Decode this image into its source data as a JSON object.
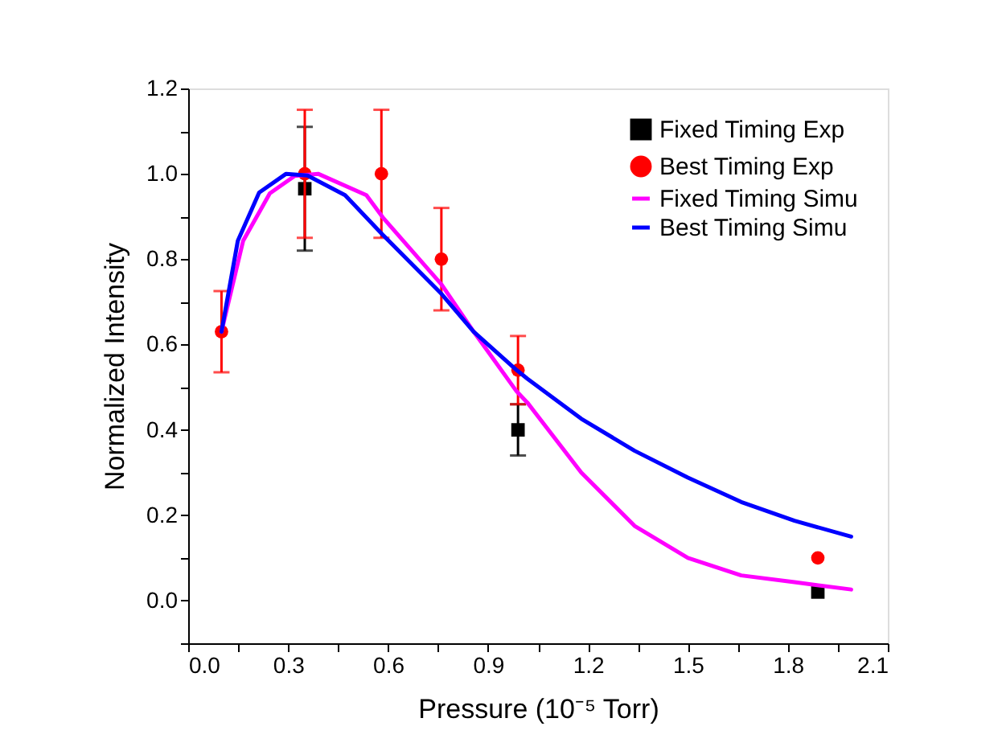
{
  "chart_data": {
    "type": "scatter",
    "xlabel": "Pressure (10⁻⁵ Torr)",
    "ylabel": "Normalized Intensity",
    "xlim": [
      0.0,
      2.1
    ],
    "ylim": [
      -0.1,
      1.2
    ],
    "xticks": [
      {
        "value": 0,
        "label": "0.0"
      },
      {
        "value": 0.15,
        "label": null
      },
      0.3,
      {
        "value": 0.45,
        "label": null
      },
      0.6,
      {
        "value": 0.75,
        "label": null
      },
      0.9,
      {
        "value": 1.05,
        "label": null
      },
      1.2,
      {
        "value": 1.35,
        "label": null
      },
      1.5,
      {
        "value": 1.65,
        "label": null
      },
      1.8,
      {
        "value": 1.95,
        "label": null
      },
      2.1
    ],
    "yticks": [
      {
        "value": -0.1,
        "label": null
      },
      {
        "value": 0,
        "label": "0.0"
      },
      {
        "value": 0.1,
        "label": null
      },
      0.2,
      {
        "value": 0.3,
        "label": null
      },
      0.4,
      {
        "value": 0.5,
        "label": null
      },
      0.6,
      {
        "value": 0.7,
        "label": null
      },
      0.8,
      {
        "value": 0.9,
        "label": null
      },
      {
        "value": 1,
        "label": "1.0"
      },
      {
        "value": 1.1,
        "label": null
      },
      1.2
    ],
    "grid": false,
    "legend": "top right",
    "series": [
      {
        "name": "Fixed Timing Exp",
        "marker": "square",
        "color": "#000000",
        "x": [
          0.35,
          0.99,
          1.89
        ],
        "values": [
          0.965,
          0.4,
          0.02
        ],
        "errors": [
          [
            0.82,
            1.11
          ],
          [
            0.34,
            0.46
          ],
          null
        ]
      },
      {
        "name": "Best Timing Exp",
        "marker": "circle",
        "color": "#ff0000",
        "x": [
          0.1,
          0.35,
          0.58,
          0.76,
          0.99,
          1.89
        ],
        "values": [
          0.63,
          1.0,
          1.0,
          0.8,
          0.54,
          0.1
        ],
        "errors": [
          [
            0.535,
            0.725
          ],
          [
            0.85,
            1.15
          ],
          [
            0.85,
            1.15
          ],
          [
            0.68,
            0.92
          ],
          [
            0.46,
            0.62
          ],
          null
        ]
      },
      {
        "name": "Fixed Timing Simu",
        "type": "line",
        "marker": "none",
        "line_style": "solid",
        "color": "#ff00ff",
        "x": [
          0.1,
          0.165,
          0.245,
          0.32,
          0.39,
          0.535,
          0.584,
          0.761,
          0.857,
          0.986,
          1.018,
          1.18,
          1.34,
          1.5,
          1.66,
          1.82,
          1.99
        ],
        "values": [
          0.63,
          0.843,
          0.954,
          0.995,
          1.0,
          0.95,
          0.898,
          0.74,
          0.63,
          0.49,
          0.464,
          0.3,
          0.175,
          0.1,
          0.059,
          0.043,
          0.026
        ]
      },
      {
        "name": "Best Timing Simu",
        "type": "line",
        "marker": "none",
        "line_style": "solid",
        "color": "#0000ff",
        "x": [
          0.1,
          0.149,
          0.213,
          0.294,
          0.358,
          0.471,
          0.584,
          0.761,
          0.857,
          0.986,
          1.018,
          1.18,
          1.34,
          1.5,
          1.66,
          1.82,
          1.99
        ],
        "values": [
          0.63,
          0.843,
          0.956,
          1.0,
          0.996,
          0.95,
          0.857,
          0.718,
          0.63,
          0.54,
          0.52,
          0.426,
          0.351,
          0.288,
          0.231,
          0.187,
          0.15
        ]
      }
    ]
  }
}
